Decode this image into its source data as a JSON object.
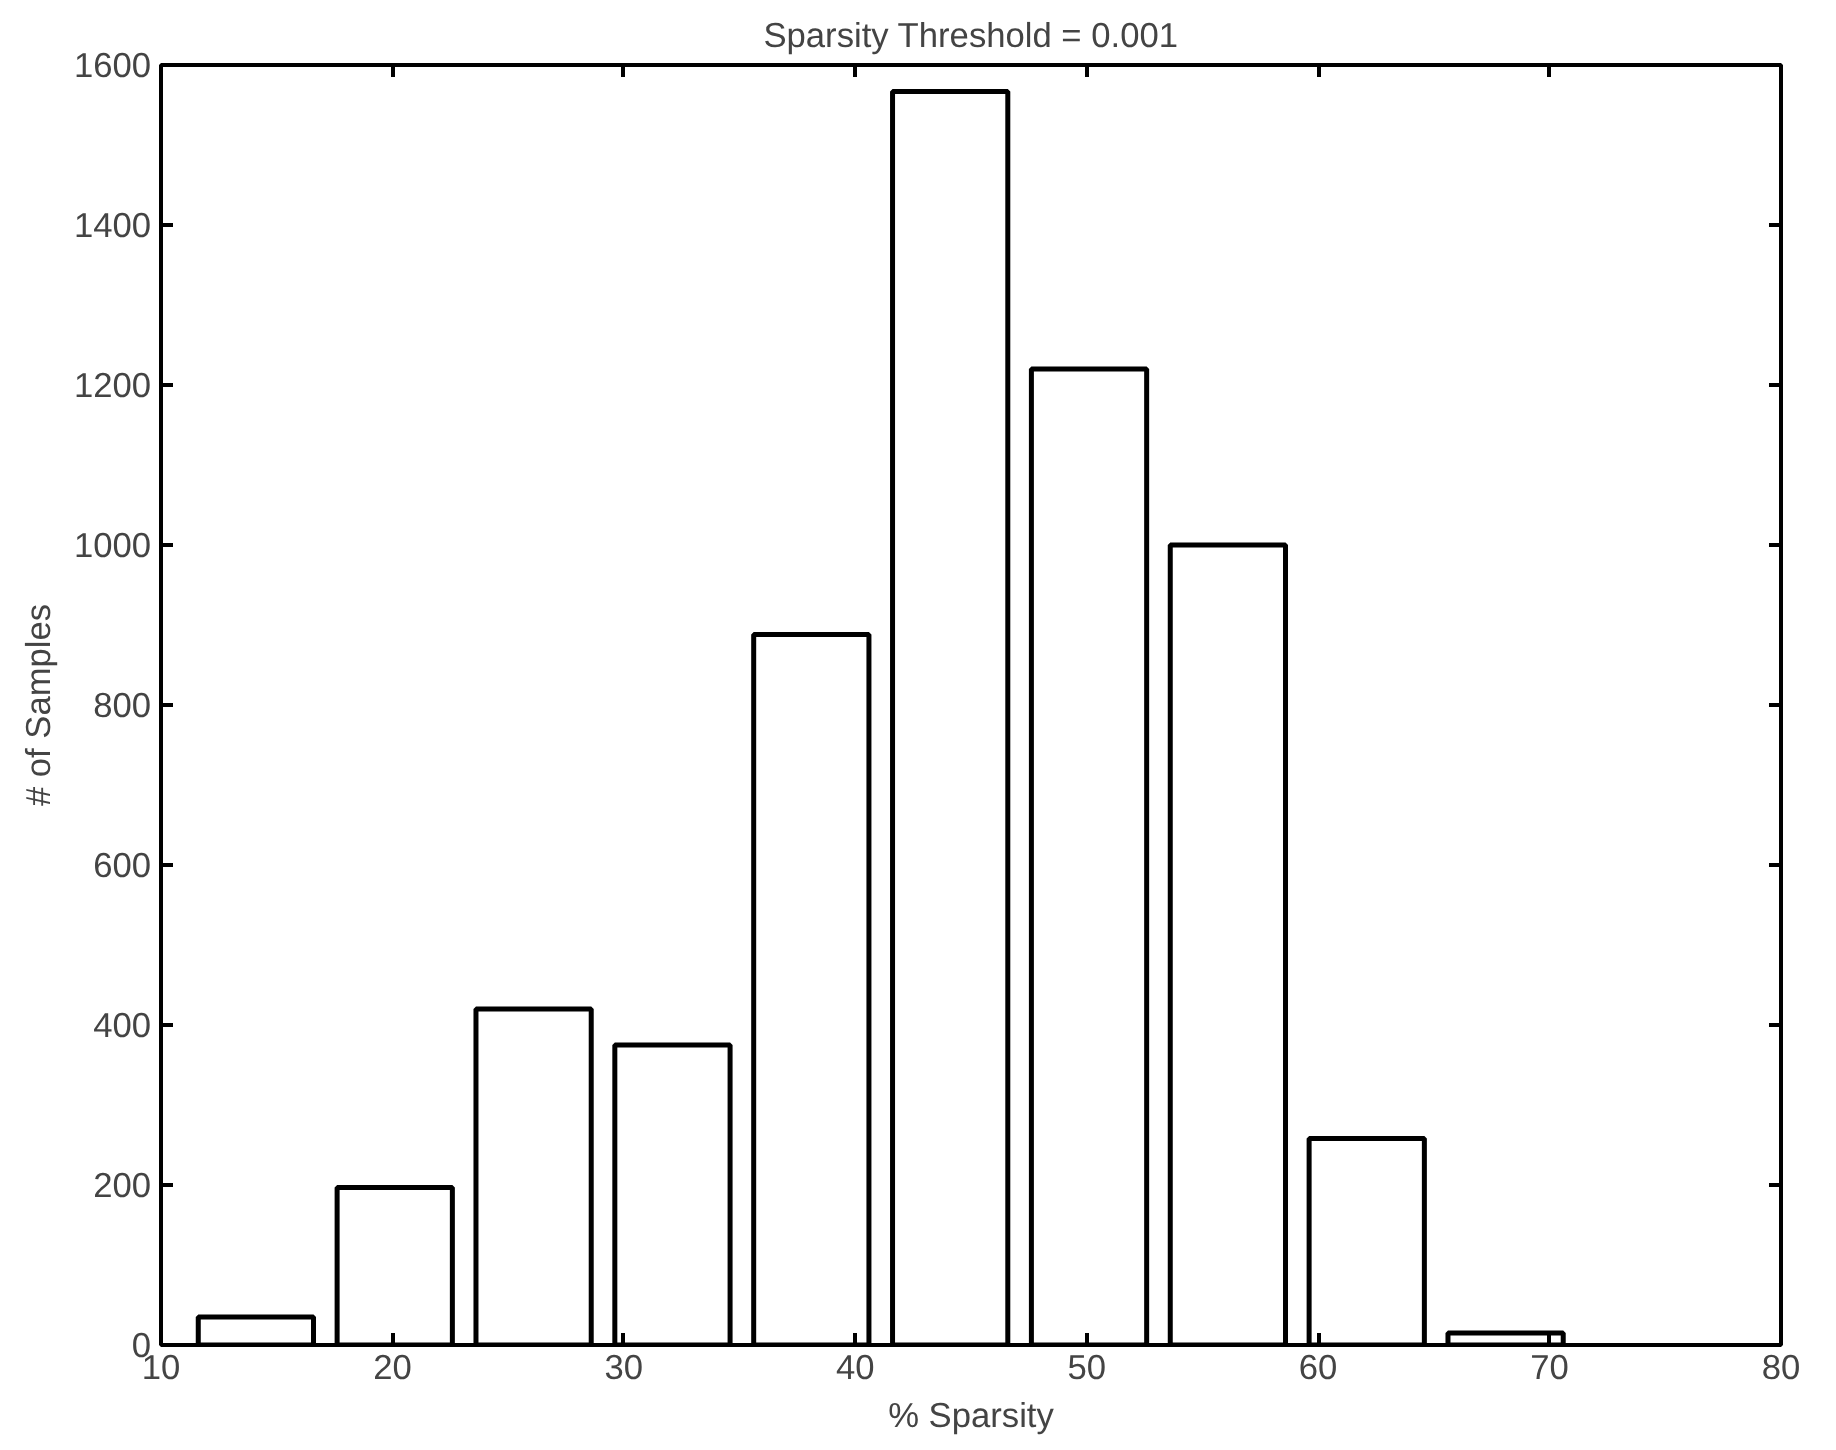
{
  "chart_data": {
    "type": "histogram",
    "title": "Sparsity Threshold = 0.001",
    "xlabel": "% Sparsity",
    "ylabel": "# of Samples",
    "bins": [
      11.1,
      17.1,
      23.1,
      29.1,
      35.1,
      41.1,
      47.1,
      53.1,
      59.1,
      65.1,
      71.1
    ],
    "values": [
      35,
      197,
      420,
      375,
      888,
      1567,
      1220,
      1000,
      258,
      15
    ],
    "color": "#ffffff",
    "xlim": [
      10,
      80
    ],
    "xticks": [
      10,
      20,
      30,
      40,
      50,
      60,
      70,
      80
    ],
    "ylim": [
      0,
      1600
    ],
    "yticks": [
      0,
      200,
      400,
      600,
      800,
      1000,
      1200,
      1400,
      1600
    ],
    "grid": false
  }
}
